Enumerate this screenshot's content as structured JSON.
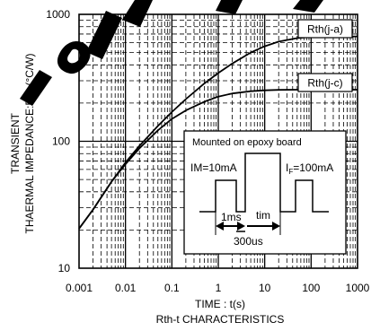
{
  "chart_data": {
    "type": "line",
    "xlabel": "TIME : t(s)",
    "ylabel_line1": "TRANSIENT",
    "ylabel_line2": "THAERMAL IMPEDANCE:Rth (°C/W)",
    "subtitle": "Rth-t CHARACTERISTICS",
    "x_scale": "log",
    "y_scale": "log",
    "xlim": [
      0.001,
      1000
    ],
    "ylim": [
      10,
      1000
    ],
    "grid": true,
    "x_ticks": [
      0.001,
      0.01,
      0.1,
      1,
      10,
      100,
      1000
    ],
    "x_tick_labels": [
      "0.001",
      "0.01",
      "0.1",
      "1",
      "10",
      "100",
      "1000"
    ],
    "y_ticks": [
      10,
      100,
      1000
    ],
    "y_tick_labels": [
      "10",
      "100",
      "1000"
    ],
    "series": [
      {
        "name": "Rth(j-a)",
        "x": [
          0.001,
          0.002,
          0.005,
          0.01,
          0.02,
          0.05,
          0.1,
          0.2,
          0.5,
          1,
          2,
          5,
          10,
          20,
          50,
          100,
          200,
          500,
          1000
        ],
        "y": [
          20.5,
          29,
          48,
          68,
          92,
          132,
          170,
          215,
          285,
          345,
          410,
          500,
          560,
          610,
          650,
          665,
          670,
          670,
          670
        ]
      },
      {
        "name": "Rth(j-c)",
        "x": [
          0.001,
          0.002,
          0.005,
          0.01,
          0.02,
          0.05,
          0.1,
          0.2,
          0.5,
          1,
          2,
          5,
          10,
          20,
          50,
          100,
          200,
          500,
          1000
        ],
        "y": [
          20.5,
          29,
          48,
          66,
          88,
          122,
          150,
          175,
          205,
          225,
          238,
          248,
          252,
          254,
          255,
          255,
          255,
          255,
          255
        ]
      }
    ],
    "inset": {
      "title": "Mounted on epoxy board",
      "im_label": "IM=10mA",
      "if_prefix": "I",
      "if_sub": "F",
      "if_suffix": "=100mA",
      "label_1ms": "1ms",
      "label_tim": "tim",
      "label_300us": "300us"
    }
  },
  "colors": {
    "axes": "#000000",
    "grid": "#000000",
    "curves": "#000000",
    "watermark": "#000000",
    "background": "#ffffff"
  }
}
